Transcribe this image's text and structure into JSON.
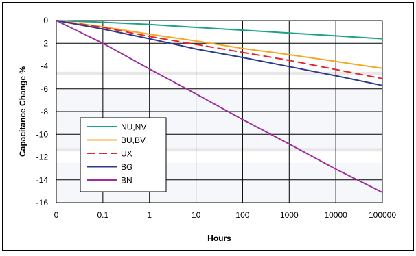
{
  "chart_data": {
    "type": "line",
    "title": "",
    "xlabel": "Hours",
    "ylabel": "Capacitance Change %",
    "x_categories": [
      "0",
      "0.1",
      "1",
      "10",
      "100",
      "1000",
      "10000",
      "100000"
    ],
    "y_ticks": [
      "0",
      "-2",
      "-4",
      "-6",
      "-8",
      "-10",
      "-12",
      "-14",
      "-16"
    ],
    "ylim": [
      -16,
      0
    ],
    "grid": true,
    "legend_position": "lower-left",
    "series": [
      {
        "name": "NU,NV",
        "color": "#1aa384",
        "dash": "solid",
        "values": [
          0,
          -0.15,
          -0.35,
          -0.6,
          -0.85,
          -1.1,
          -1.35,
          -1.6
        ]
      },
      {
        "name": "BU,BV",
        "color": "#f5a623",
        "dash": "solid",
        "values": [
          0,
          -0.55,
          -1.2,
          -1.8,
          -2.45,
          -3.0,
          -3.6,
          -4.2
        ]
      },
      {
        "name": "UX",
        "color": "#e8262a",
        "dash": "dashed",
        "values": [
          0,
          -0.6,
          -1.4,
          -2.1,
          -2.8,
          -3.5,
          -4.3,
          -5.1
        ]
      },
      {
        "name": "BG",
        "color": "#2a3a8c",
        "dash": "solid",
        "values": [
          0,
          -0.75,
          -1.6,
          -2.5,
          -3.25,
          -4.05,
          -4.85,
          -5.7
        ]
      },
      {
        "name": "BN",
        "color": "#9b2f9e",
        "dash": "solid",
        "values": [
          0,
          -2.0,
          -4.25,
          -6.45,
          -8.7,
          -10.85,
          -13.05,
          -15.1
        ]
      }
    ]
  }
}
